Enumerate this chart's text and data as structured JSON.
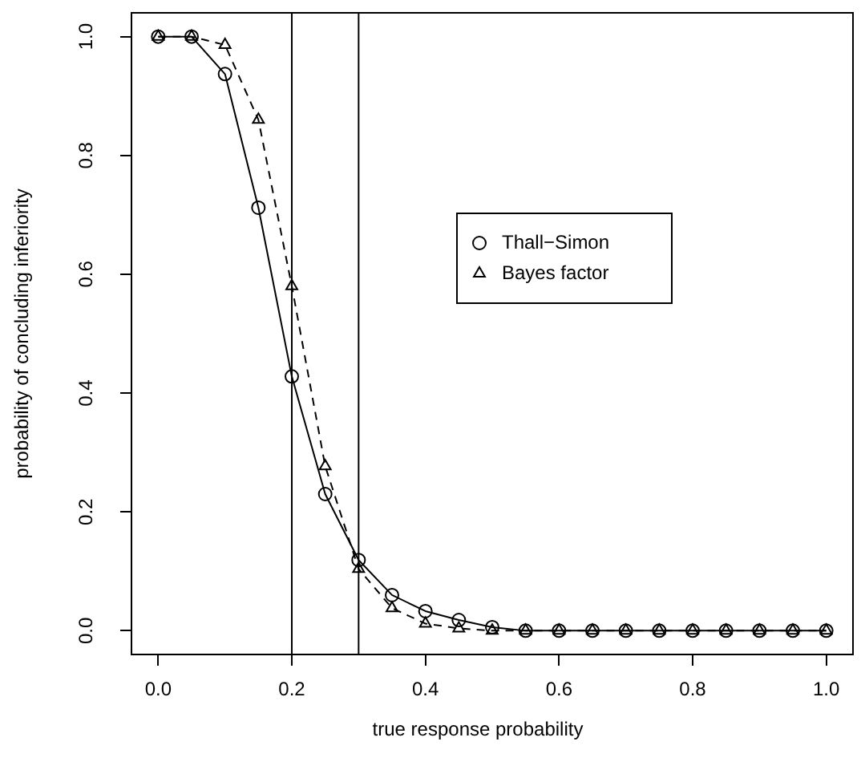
{
  "chart_data": {
    "type": "line",
    "xlabel": "true response probability",
    "ylabel": "probability of concluding inferiority",
    "x": [
      0,
      0.05,
      0.1,
      0.15,
      0.2,
      0.25,
      0.3,
      0.35,
      0.4,
      0.45,
      0.5,
      0.55,
      0.6,
      0.65,
      0.7,
      0.75,
      0.8,
      0.85,
      0.9,
      0.95,
      1.0
    ],
    "series": [
      {
        "name": "Thall−Simon",
        "color": "#000000",
        "marker": "circle",
        "line_style": "solid",
        "values": [
          1.0,
          1.0,
          0.937,
          0.712,
          0.428,
          0.23,
          0.119,
          0.06,
          0.033,
          0.018,
          0.006,
          0,
          0,
          0,
          0,
          0,
          0,
          0,
          0,
          0,
          0
        ]
      },
      {
        "name": "Bayes factor",
        "color": "#000000",
        "marker": "triangle",
        "line_style": "dashed",
        "values": [
          1.0,
          1.0,
          0.986,
          0.86,
          0.58,
          0.277,
          0.104,
          0.038,
          0.012,
          0.004,
          0,
          0,
          0,
          0,
          0,
          0,
          0,
          0,
          0,
          0,
          0
        ]
      }
    ],
    "xlim": [
      -0.04,
      1.04
    ],
    "xticks": [
      {
        "value": 0,
        "label": "0.0"
      },
      {
        "value": 0.2,
        "label": "0.2"
      },
      {
        "value": 0.4,
        "label": "0.4"
      },
      {
        "value": 0.6,
        "label": "0.6"
      },
      {
        "value": 0.8,
        "label": "0.8"
      },
      {
        "value": 1,
        "label": "1.0"
      }
    ],
    "ylim": [
      -0.04,
      1.04
    ],
    "yticks": [
      {
        "value": 0,
        "label": "0.0"
      },
      {
        "value": 0.2,
        "label": "0.2"
      },
      {
        "value": 0.4,
        "label": "0.4"
      },
      {
        "value": 0.6,
        "label": "0.6"
      },
      {
        "value": 0.8,
        "label": "0.8"
      },
      {
        "value": 1,
        "label": "1.0"
      }
    ],
    "ref_lines": [
      {
        "axis": "x",
        "value": 0.2,
        "color": "#000000"
      },
      {
        "axis": "x",
        "value": 0.3,
        "color": "#000000"
      }
    ],
    "legend": "center"
  }
}
